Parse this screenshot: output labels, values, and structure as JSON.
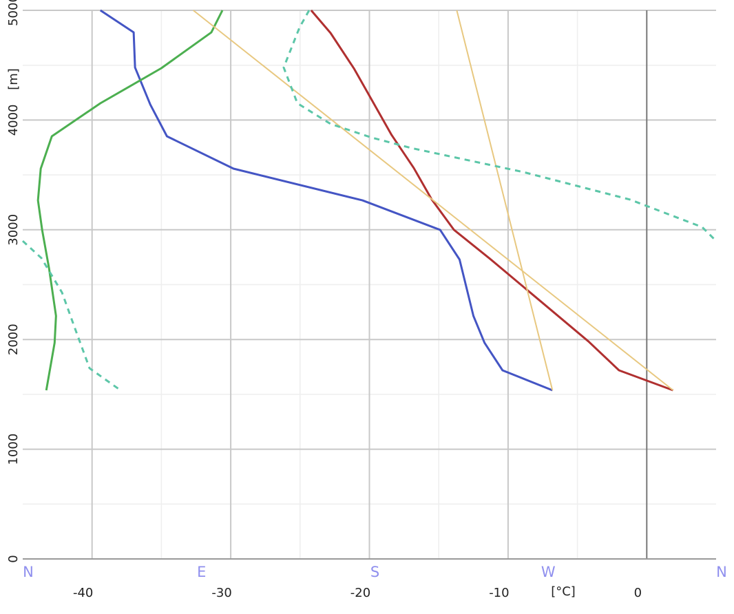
{
  "chart_data": {
    "type": "line",
    "x_unit": "[°C]",
    "y_unit": "[m]",
    "xlim": [
      -45,
      5
    ],
    "xticks": [
      -40,
      -30,
      -20,
      -10,
      0
    ],
    "minor_xticks": [
      -35,
      -25,
      -15,
      -5
    ],
    "x2lim": [
      0,
      360
    ],
    "x2ticks": [
      {
        "value": 0,
        "label": "N"
      },
      {
        "value": 90,
        "label": "E"
      },
      {
        "value": 180,
        "label": "S"
      },
      {
        "value": 270,
        "label": "W"
      },
      {
        "value": 360,
        "label": "N"
      }
    ],
    "ylim": [
      0,
      5000
    ],
    "yticks": [
      0,
      1000,
      2000,
      3000,
      4000,
      5000
    ],
    "minor_yticks": [
      500,
      1500,
      2500,
      3500,
      4500
    ],
    "grid": true,
    "series": [
      {
        "color": "#4455c4",
        "x": [
          -39.4,
          -37.0,
          -36.9,
          -35.8,
          -34.6,
          -29.8,
          -20.5,
          -14.9,
          -13.5,
          -12.5,
          -11.7,
          -10.4,
          -6.8
        ],
        "values": [
          5000,
          4799,
          4479,
          4141,
          3852,
          3557,
          3268,
          2999,
          2729,
          2215,
          1970,
          1719,
          1537
        ]
      },
      {
        "color": "#b03030",
        "x": [
          -24.2,
          -22.8,
          -21.1,
          -18.4,
          -16.8,
          -15.5,
          -13.9,
          -11.3,
          -4.2,
          -2.0,
          1.9
        ],
        "values": [
          5000,
          4793,
          4467,
          3864,
          3563,
          3275,
          2999,
          2735,
          1982,
          1719,
          1537
        ]
      },
      {
        "color": "#4caf50",
        "x": [
          -30.6,
          -31.4,
          -35.0,
          -39.4,
          -42.9,
          -43.7,
          -43.9,
          -43.6,
          -43.1,
          -42.6,
          -42.7,
          -43.3
        ],
        "values": [
          5000,
          4799,
          4473,
          4153,
          3852,
          3557,
          3268,
          2999,
          2647,
          2215,
          1970,
          1537
        ]
      },
      {
        "color": "#e8c880",
        "x": [
          1.9,
          -32.7
        ],
        "values": [
          1537,
          5000
        ]
      },
      {
        "color": "#e8c880",
        "x": [
          -6.8,
          -13.7
        ],
        "values": [
          1537,
          5000
        ]
      },
      {
        "color": "#5cc6a8",
        "dashed": true,
        "axis": "x2",
        "x": [
          148.7,
          143.7,
          135.5,
          142.6,
          159.8,
          181.2,
          201.7,
          259.9,
          315.3,
          352.8,
          360,
          null,
          0,
          9.7,
          20.4,
          27.5,
          34.7,
          50.8
        ],
        "values": [
          5000,
          4843,
          4479,
          4153,
          3965,
          3840,
          3745,
          3526,
          3275,
          3024,
          2898,
          null,
          2898,
          2742,
          2428,
          2083,
          1738,
          1537
        ]
      }
    ]
  }
}
